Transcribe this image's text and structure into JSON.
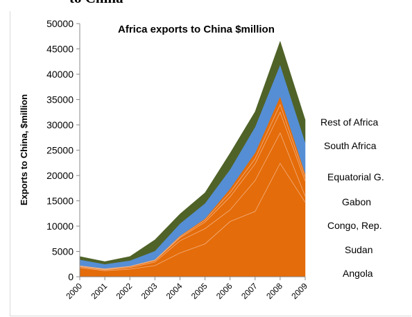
{
  "page_header_fragment": "to China",
  "chart_data": {
    "type": "area",
    "stacked": true,
    "title": "Africa exports to China $million",
    "xlabel": "",
    "ylabel": "Exports to China,  $million",
    "categories": [
      "2000",
      "2001",
      "2002",
      "2003",
      "2004",
      "2005",
      "2006",
      "2007",
      "2008",
      "2009"
    ],
    "ylim": [
      0,
      50000
    ],
    "yticks": [
      0,
      5000,
      10000,
      15000,
      20000,
      25000,
      30000,
      35000,
      40000,
      45000,
      50000
    ],
    "ytick_labels": [
      "0",
      "5000",
      "10000",
      "15000",
      "20000",
      "25000",
      "30000",
      "35000",
      "40000",
      "45000",
      "50000"
    ],
    "grid": false,
    "legend_placement": "right, labels beside series",
    "series": [
      {
        "name": "Angola",
        "color": "#E46C0A",
        "values": [
          1800,
          1200,
          1500,
          2200,
          4700,
          6500,
          10900,
          12900,
          22400,
          14700
        ]
      },
      {
        "name": "Sudan",
        "color": "#E46C0A",
        "values": [
          200,
          200,
          300,
          700,
          2400,
          3000,
          2300,
          6100,
          6000,
          1200
        ]
      },
      {
        "name": "Congo, Rep.",
        "color": "#E46C0A",
        "values": [
          100,
          100,
          200,
          300,
          600,
          1300,
          2600,
          3300,
          4100,
          3000
        ]
      },
      {
        "name": "Gabon",
        "color": "#E46C0A",
        "values": [
          50,
          50,
          50,
          100,
          200,
          400,
          800,
          1000,
          1500,
          800
        ]
      },
      {
        "name": "Equatorial G.",
        "color": "#E46C0A",
        "values": [
          50,
          50,
          50,
          100,
          200,
          300,
          800,
          1200,
          1600,
          700
        ]
      },
      {
        "name": "South Africa",
        "color": "#558ED5",
        "values": [
          1200,
          900,
          1100,
          1700,
          2400,
          3000,
          3800,
          5100,
          6300,
          6200
        ]
      },
      {
        "name": "Rest of Africa",
        "color": "#4F6228",
        "values": [
          600,
          500,
          800,
          2200,
          1900,
          2100,
          3200,
          3000,
          4600,
          4400
        ]
      }
    ]
  }
}
